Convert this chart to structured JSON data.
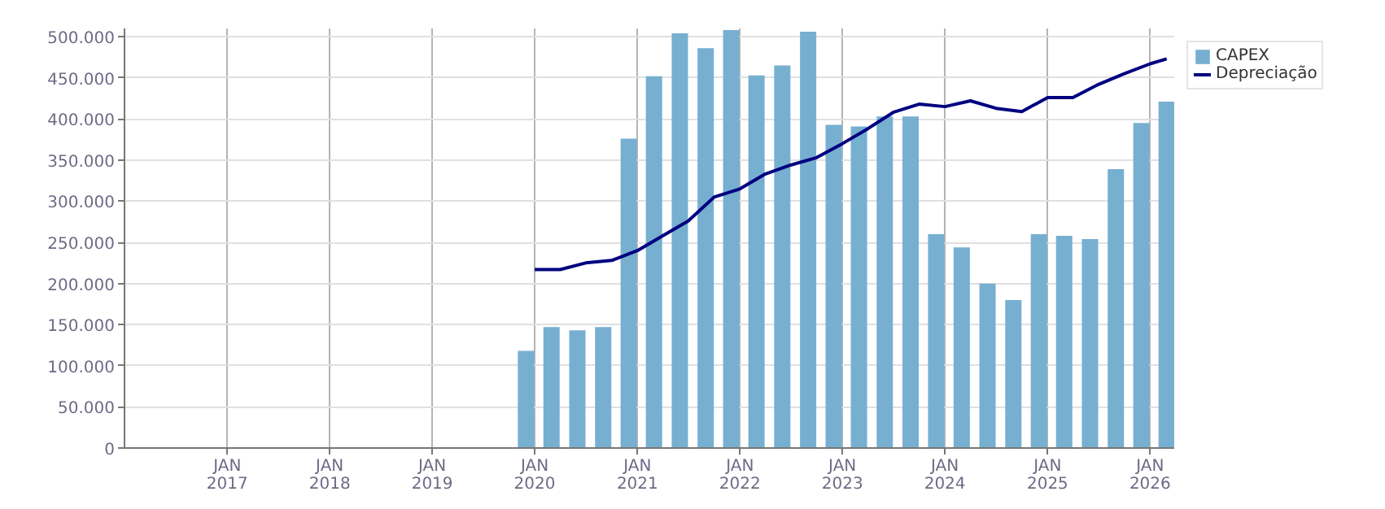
{
  "chart_data": {
    "type": "bar",
    "x": [
      "2019-12",
      "2020-03",
      "2020-06",
      "2020-09",
      "2020-12",
      "2021-03",
      "2021-06",
      "2021-09",
      "2021-12",
      "2022-03",
      "2022-06",
      "2022-09",
      "2022-12",
      "2023-03",
      "2023-06",
      "2023-09",
      "2023-12",
      "2024-03",
      "2024-06",
      "2024-09",
      "2024-12",
      "2025-03",
      "2025-06",
      "2025-09",
      "2025-12",
      "2026-03"
    ],
    "series": [
      {
        "name": "CAPEX",
        "color": "#77afd1",
        "values": [
          118000,
          147000,
          143000,
          147000,
          376000,
          452000,
          504000,
          486000,
          508000,
          453000,
          465000,
          506000,
          393000,
          391000,
          403000,
          403000,
          260000,
          244000,
          200000,
          180000,
          260000,
          258000,
          254000,
          339000,
          395000,
          421000
        ]
      },
      {
        "name": "Depreciação",
        "type": "line",
        "color": "#000080",
        "x": [
          "2020-01",
          "2020-04",
          "2020-07",
          "2020-10",
          "2021-01",
          "2021-04",
          "2021-07",
          "2021-10",
          "2022-01",
          "2022-04",
          "2022-07",
          "2022-10",
          "2023-01",
          "2023-04",
          "2023-07",
          "2023-10",
          "2024-01",
          "2024-04",
          "2024-07",
          "2024-10",
          "2025-01",
          "2025-04",
          "2025-07",
          "2025-10",
          "2026-01",
          "2026-03"
        ],
        "values": [
          217000,
          217000,
          225000,
          228000,
          240000,
          258000,
          276000,
          305000,
          315000,
          333000,
          344000,
          353000,
          370000,
          388000,
          408000,
          418000,
          415000,
          422000,
          413000,
          409000,
          426000,
          426000,
          442000,
          455000,
          467000,
          473000
        ]
      }
    ],
    "xlim": [
      "2016-01",
      "2026-03-28"
    ],
    "xticks": [
      {
        "value": "2017-01",
        "label": "JAN\n2017"
      },
      {
        "value": "2018-01",
        "label": "JAN\n2018"
      },
      {
        "value": "2019-01",
        "label": "JAN\n2019"
      },
      {
        "value": "2020-01",
        "label": "JAN\n2020"
      },
      {
        "value": "2021-01",
        "label": "JAN\n2021"
      },
      {
        "value": "2022-01",
        "label": "JAN\n2022"
      },
      {
        "value": "2023-01",
        "label": "JAN\n2023"
      },
      {
        "value": "2024-01",
        "label": "JAN\n2024"
      },
      {
        "value": "2025-01",
        "label": "JAN\n2025"
      },
      {
        "value": "2026-01",
        "label": "JAN\n2026"
      }
    ],
    "ylim": [
      0,
      510000
    ],
    "yticks": [
      0,
      {
        "value": 50000,
        "label": "50.000"
      },
      {
        "value": 100000,
        "label": "100.000"
      },
      {
        "value": 150000,
        "label": "150.000"
      },
      {
        "value": 200000,
        "label": "200.000"
      },
      {
        "value": 250000,
        "label": "250.000"
      },
      {
        "value": 300000,
        "label": "300.000"
      },
      {
        "value": 350000,
        "label": "350.000"
      },
      {
        "value": 400000,
        "label": "400.000"
      },
      {
        "value": 450000,
        "label": "450.000"
      },
      {
        "value": 500000,
        "label": "500.000"
      }
    ],
    "grid": true,
    "legend": "top right",
    "line_style": "solid"
  }
}
